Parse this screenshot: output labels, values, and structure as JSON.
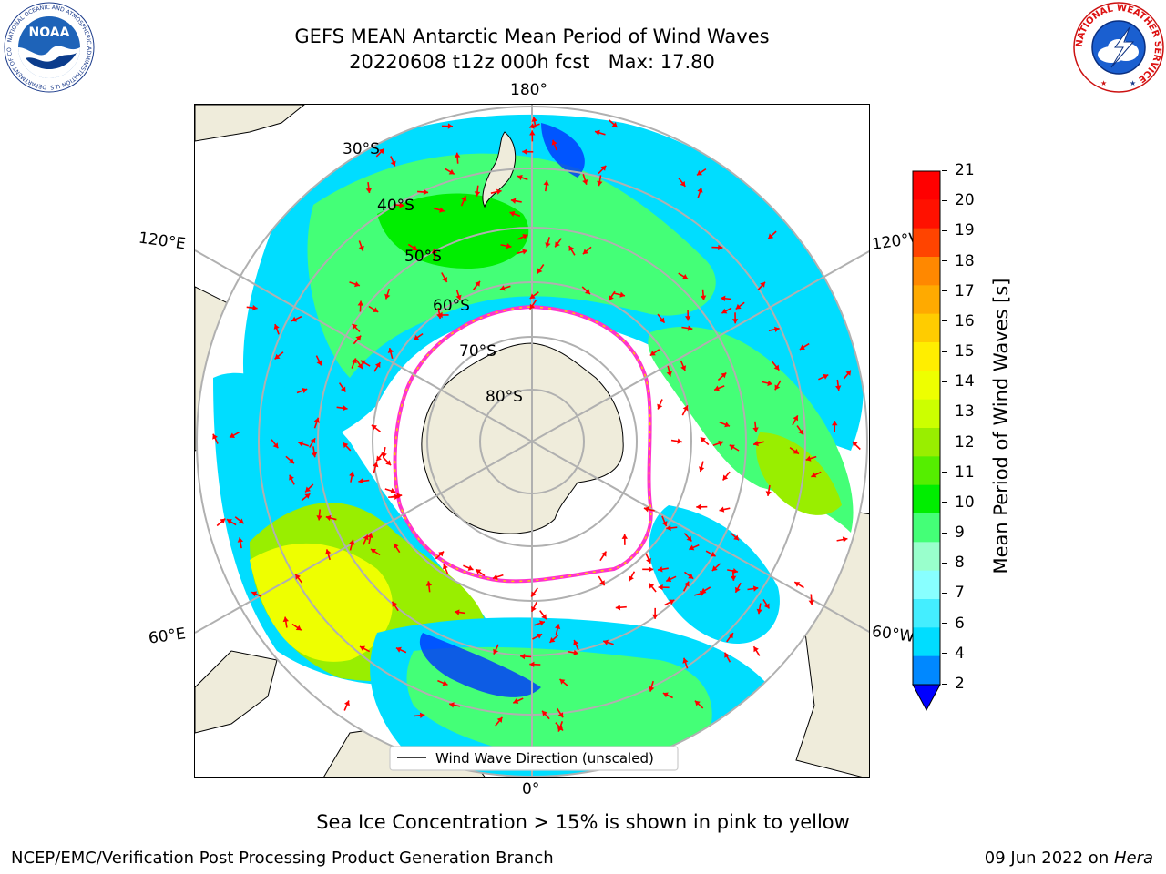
{
  "header": {
    "title_line1": "GEFS MEAN Antarctic Mean Period of Wind Waves",
    "title_line2": "20220608 t12z 000h fcst   Max: 17.80"
  },
  "logos": {
    "left": "NOAA",
    "left_ring_text": "NATIONAL OCEANIC AND ATMOSPHERIC ADMINISTRATION U.S. DEPARTMENT OF COMMERCE",
    "right_ring_text": "NATIONAL WEATHER SERVICE"
  },
  "map": {
    "projection": "south-polar-stereographic",
    "longitude_labels": {
      "top": "180°",
      "bottom": "0°",
      "upper_left": "120°E",
      "upper_right": "120°W",
      "lower_left": "60°E",
      "lower_right": "60°W"
    },
    "latitude_labels": [
      "30°S",
      "40°S",
      "50°S",
      "60°S",
      "70°S",
      "80°S"
    ],
    "legend_text": "Wind Wave Direction (unscaled)",
    "colors": {
      "land": "#efecdb",
      "ocean_no_data": "#ffffff",
      "arrow": "#ff0000",
      "sea_ice": "#ff33cc",
      "grid": "#b0b0b0"
    }
  },
  "colorbar": {
    "label": "Mean Period of Wind Waves [s]",
    "ticks": [
      "2",
      "4",
      "6",
      "7",
      "8",
      "9",
      "10",
      "11",
      "12",
      "13",
      "14",
      "15",
      "16",
      "17",
      "18",
      "19",
      "20",
      "21"
    ],
    "colors": [
      "#0033ff",
      "#0088ff",
      "#00ddff",
      "#44eeff",
      "#88ffff",
      "#99ffcc",
      "#44ff77",
      "#00ee00",
      "#55ee00",
      "#99ee00",
      "#ccff00",
      "#eeff00",
      "#ffee00",
      "#ffcc00",
      "#ffaa00",
      "#ff8800",
      "#ff4400",
      "#ff1100",
      "#ff0000"
    ],
    "under_color": "#0000ff"
  },
  "ice_note": "Sea Ice Concentration > 15% is shown in pink to yellow",
  "footer": {
    "left": "NCEP/EMC/Verification Post Processing Product Generation Branch",
    "right_prefix": "09 Jun 2022 on ",
    "right_host": "Hera"
  }
}
